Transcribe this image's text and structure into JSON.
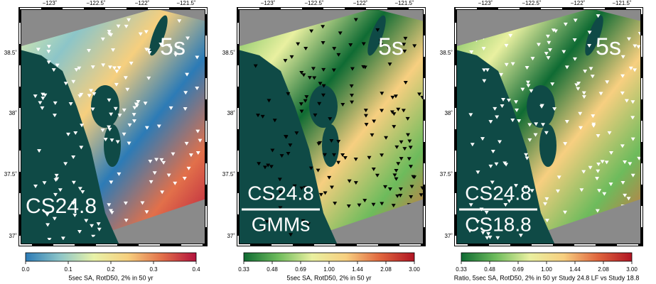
{
  "panels": [
    {
      "big_label": "5s",
      "label": "CS24.8",
      "lon_ticks": [
        "−123˚",
        "−122.5˚",
        "−122˚",
        "−121.5˚"
      ],
      "lat_ticks": [
        "38.5˚",
        "38˚",
        "37.5˚",
        "37˚"
      ],
      "marker_color": "#ffffff",
      "colorbar": {
        "colors": [
          "#2c7bb6",
          "#8cc5c8",
          "#e8f2a8",
          "#f6cf7e",
          "#e2704a",
          "#b3123d"
        ],
        "ticks": [
          "0.0",
          "0.1",
          "0.2",
          "0.3",
          "0.4"
        ],
        "caption": "5sec SA, RotD50, 2% in 50 yr"
      }
    },
    {
      "big_label": "5s",
      "label_top": "CS24.8",
      "label_bottom": "GMMs",
      "lon_ticks": [
        "−123˚",
        "−122.5˚",
        "−122˚",
        "−121.5˚"
      ],
      "lat_ticks": [
        "38.5˚",
        "38˚",
        "37.5˚",
        "37˚"
      ],
      "marker_color": "#000000",
      "colorbar": {
        "colors": [
          "#0f6b33",
          "#6dbb5c",
          "#e9f0a0",
          "#f7cf80",
          "#e0663e",
          "#b01423"
        ],
        "ticks": [
          "0.33",
          "0.48",
          "0.69",
          "1.00",
          "1.44",
          "2.08",
          "3.00"
        ],
        "caption": "5sec SA, RotD50, 2% in 50 yr"
      }
    },
    {
      "big_label": "5s",
      "label_top": "CS24.8",
      "label_bottom": "CS18.8",
      "lon_ticks": [
        "−123˚",
        "−122.5˚",
        "−122˚",
        "−121.5˚"
      ],
      "lat_ticks": [
        "38.5˚",
        "38˚",
        "37.5˚",
        "37˚"
      ],
      "marker_color": "#ffffff",
      "colorbar": {
        "colors": [
          "#0f6b33",
          "#6dbb5c",
          "#e9f0a0",
          "#f7cf80",
          "#e0663e",
          "#b01423"
        ],
        "ticks": [
          "0.33",
          "0.48",
          "0.69",
          "1.00",
          "1.44",
          "2.08",
          "3.00"
        ],
        "caption": "Ratio, 5sec SA, RotD50, 2% in 50 yr Study 24.8 LF vs Study 18.8"
      }
    }
  ]
}
